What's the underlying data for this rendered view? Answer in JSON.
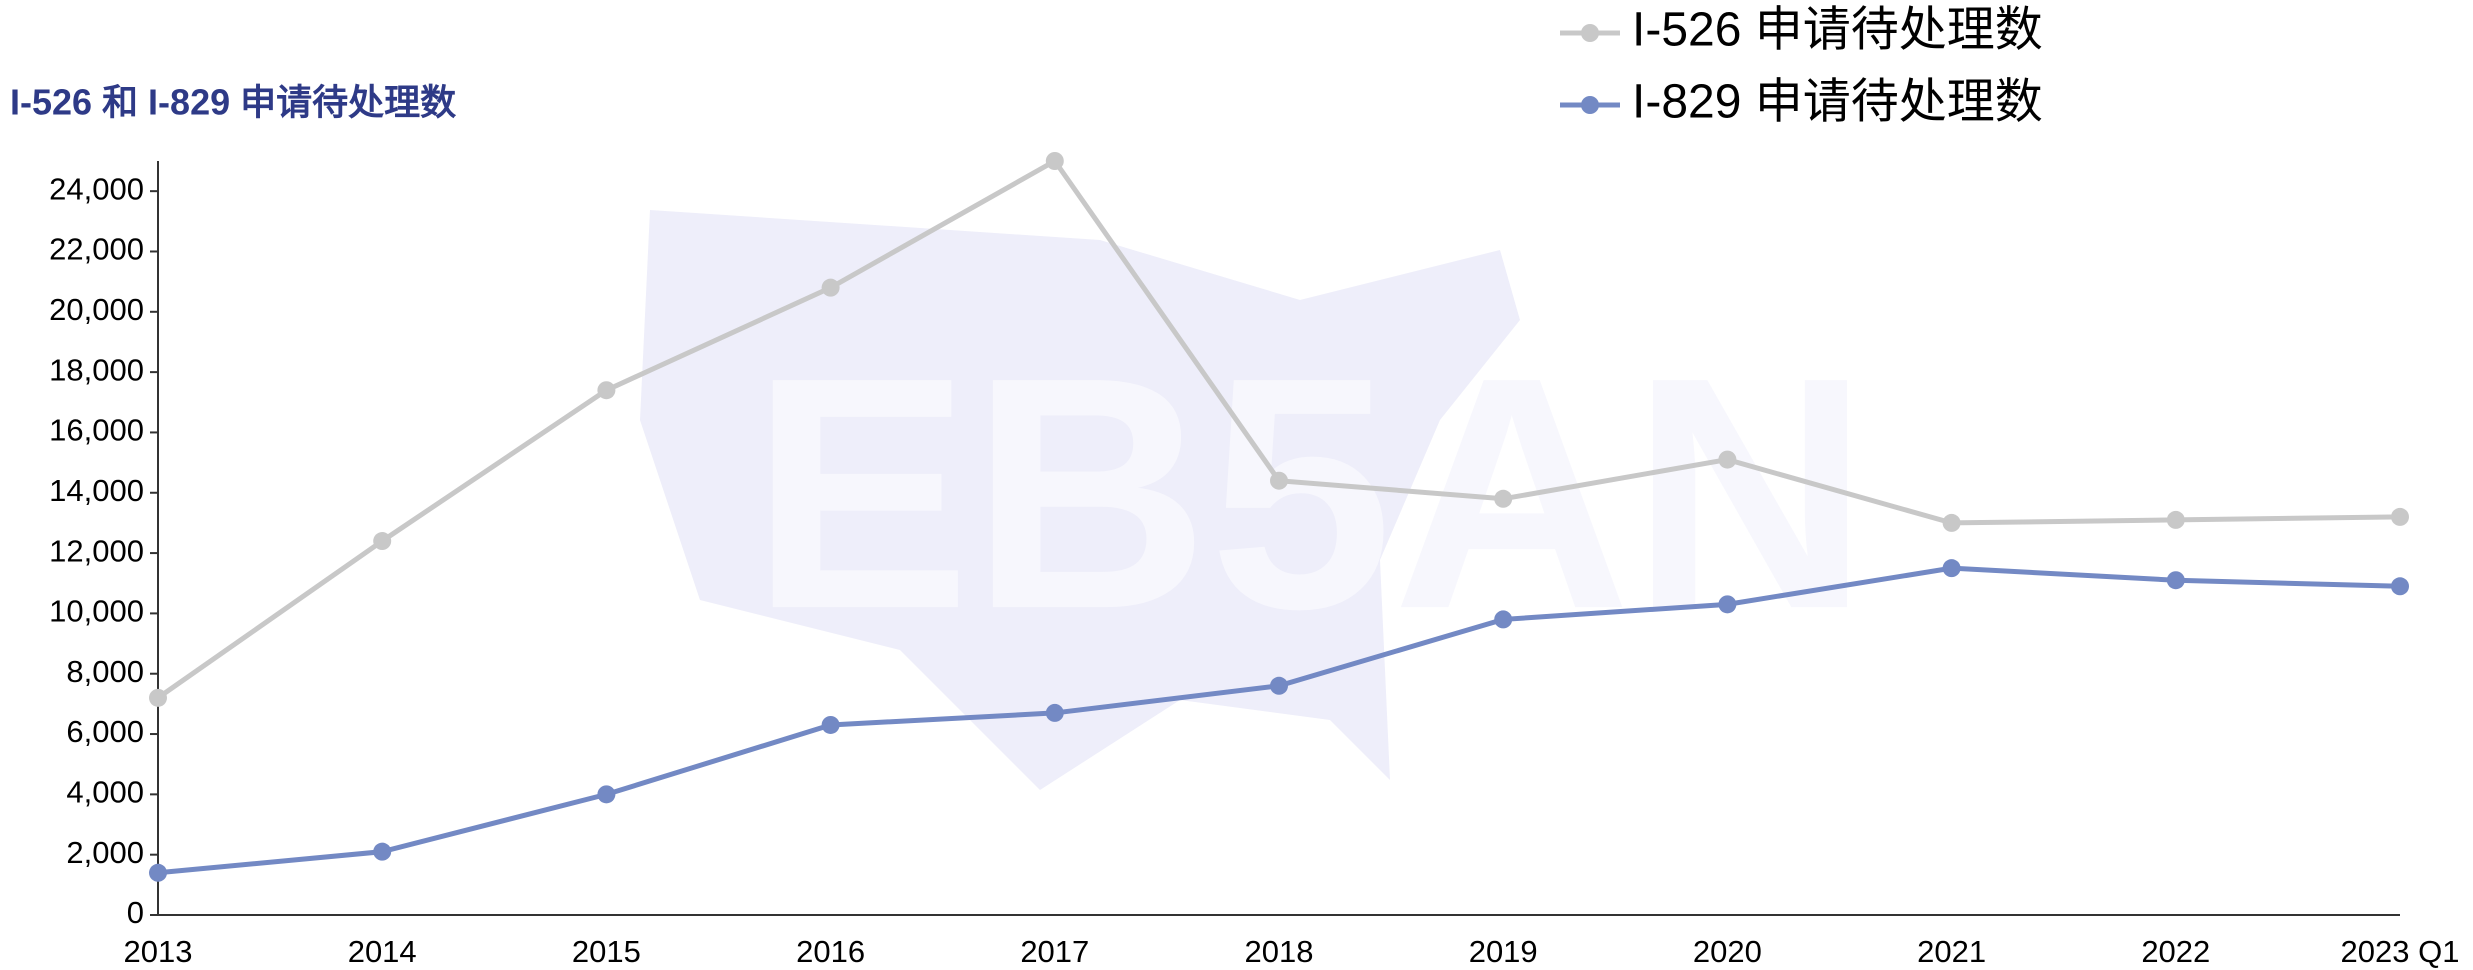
{
  "chart_data": {
    "type": "line",
    "title": "I-526 和 I-829 申请待处理数",
    "watermark": "EB5AN",
    "categories": [
      "2013",
      "2014",
      "2015",
      "2016",
      "2017",
      "2018",
      "2019",
      "2020",
      "2021",
      "2022",
      "2023 Q1"
    ],
    "series": [
      {
        "name": "I-526 申请待处理数",
        "color": "#c8c8c8",
        "values": [
          7200,
          12400,
          17400,
          20800,
          25000,
          14400,
          13800,
          15100,
          13000,
          13100,
          13200
        ]
      },
      {
        "name": "I-829 申请待处理数",
        "color": "#7389c4",
        "values": [
          1400,
          2100,
          4000,
          6300,
          6700,
          7600,
          9800,
          10300,
          11500,
          11100,
          10900
        ]
      }
    ],
    "ylim": [
      0,
      25000
    ],
    "yticks": [
      0,
      {
        "value": 2000,
        "label": "2,000"
      },
      {
        "value": 4000,
        "label": "4,000"
      },
      {
        "value": 6000,
        "label": "6,000"
      },
      {
        "value": 8000,
        "label": "8,000"
      },
      {
        "value": 10000,
        "label": "10,000"
      },
      {
        "value": 12000,
        "label": "12,000"
      },
      {
        "value": 14000,
        "label": "14,000"
      },
      {
        "value": 16000,
        "label": "16,000"
      },
      {
        "value": 18000,
        "label": "18,000"
      },
      {
        "value": 20000,
        "label": "20,000"
      },
      {
        "value": 22000,
        "label": "22,000"
      },
      {
        "value": 24000,
        "label": "24,000"
      }
    ],
    "grid": false,
    "legend": "top-right"
  }
}
